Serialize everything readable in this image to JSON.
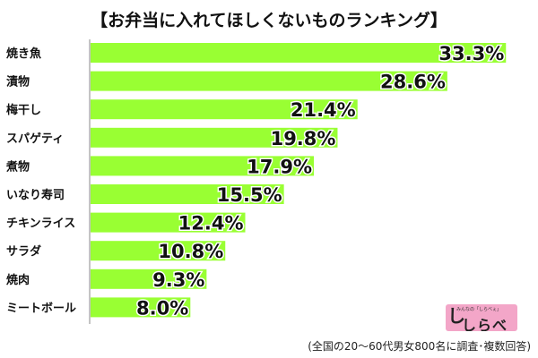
{
  "chart_data": {
    "type": "bar",
    "orientation": "horizontal",
    "title": "【お弁当に入れてほしくないものランキング】",
    "categories": [
      "焼き魚",
      "漬物",
      "梅干し",
      "スパゲティ",
      "煮物",
      "いなり寿司",
      "チキンライス",
      "サラダ",
      "焼肉",
      "ミートボール"
    ],
    "values": [
      33.3,
      28.6,
      21.4,
      19.8,
      17.9,
      15.5,
      12.4,
      10.8,
      9.3,
      8.0
    ],
    "value_labels": [
      "33.3%",
      "28.6%",
      "21.4%",
      "19.8%",
      "17.9%",
      "15.5%",
      "12.4%",
      "10.8%",
      "9.3%",
      "8.0%"
    ],
    "xlabel": "",
    "ylabel": "",
    "xlim": [
      0,
      34
    ],
    "grid": false,
    "legend": "none",
    "bar_color": "#99ff33"
  },
  "footnote": "(全国の20～60代男女800名に調査･複数回答)",
  "logo": {
    "name": "しらべぇ",
    "mark": "し",
    "tagline": "みんなの「しらべぇ」"
  }
}
